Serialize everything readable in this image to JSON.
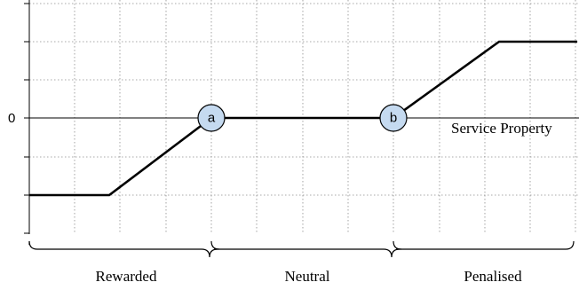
{
  "diagram": {
    "y_axis_zero_label": "0",
    "axis_label": "Service Property",
    "markers": [
      {
        "label": "a"
      },
      {
        "label": "b"
      }
    ],
    "regions": [
      {
        "label": "Rewarded"
      },
      {
        "label": "Neutral"
      },
      {
        "label": "Penalised"
      }
    ]
  }
}
